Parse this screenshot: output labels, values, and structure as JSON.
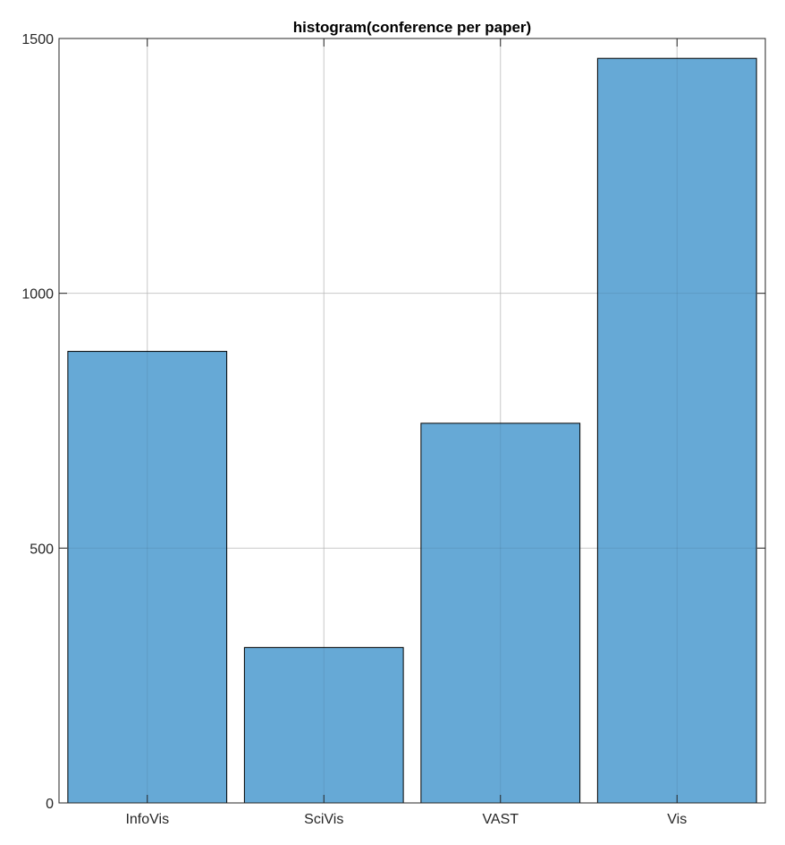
{
  "chart_data": {
    "type": "bar",
    "title": "histogram(conference per paper)",
    "xlabel": "",
    "ylabel": "",
    "categories": [
      "InfoVis",
      "SciVis",
      "VAST",
      "Vis"
    ],
    "values": [
      886,
      305,
      745,
      1461
    ],
    "ylim": [
      0,
      1500
    ],
    "yticks": [
      "0",
      "500",
      "1000",
      "1500"
    ],
    "grid": true,
    "bar_color": "#66a9d6",
    "bar_edge_color": "#000000"
  }
}
